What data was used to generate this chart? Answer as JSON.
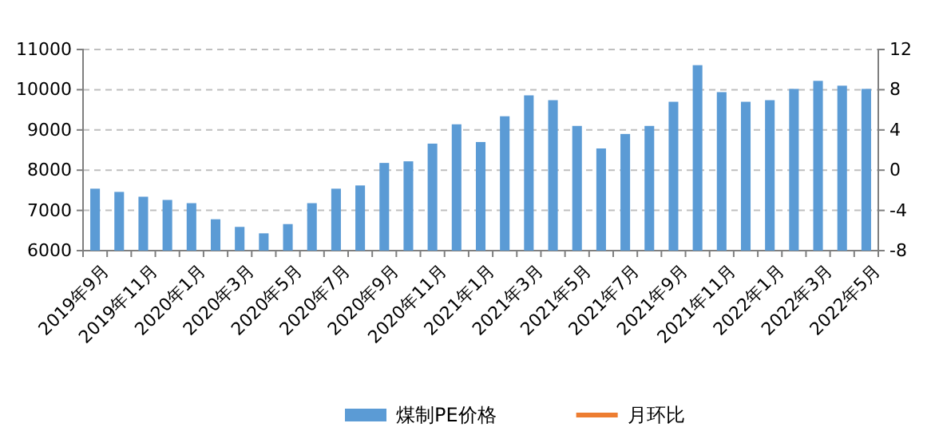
{
  "chart_data": {
    "type": "bar",
    "categories": [
      "2019年9月",
      null,
      "2019年11月",
      null,
      "2020年1月",
      null,
      "2020年3月",
      null,
      "2020年5月",
      null,
      "2020年7月",
      null,
      "2020年9月",
      null,
      "2020年11月",
      null,
      "2021年1月",
      null,
      "2021年3月",
      null,
      "2021年5月",
      null,
      "2021年7月",
      null,
      "2021年9月",
      null,
      "2021年11月",
      null,
      "2022年1月",
      null,
      "2022年3月",
      null,
      "2022年5月"
    ],
    "series": [
      {
        "name": "煤制PE价格",
        "color": "#5b9bd5",
        "values": [
          7540,
          7460,
          7340,
          7260,
          7180,
          6780,
          6590,
          6430,
          6660,
          7180,
          7540,
          7620,
          8180,
          8220,
          8660,
          9140,
          8700,
          9340,
          9860,
          9740,
          9100,
          8540,
          8900,
          9100,
          9700,
          10610,
          9940,
          9700,
          9740,
          10020,
          10220,
          10100,
          10020
        ]
      },
      {
        "name": "月环比",
        "color": "#ed7d31",
        "type": "line",
        "values": [
          null,
          null,
          null,
          null,
          null,
          null,
          null,
          null,
          null,
          null,
          null,
          null,
          null,
          null,
          null,
          null,
          null,
          null,
          null,
          null,
          null,
          null,
          null,
          null,
          null,
          null,
          null,
          null,
          null,
          null,
          null,
          null,
          null
        ]
      }
    ],
    "ylim": [
      6000,
      11000
    ],
    "yticks": [
      6000,
      7000,
      8000,
      9000,
      10000,
      11000
    ],
    "y2lim": [
      -8,
      12
    ],
    "y2ticks": [
      -8,
      -4,
      0,
      4,
      8,
      12
    ],
    "grid": "y",
    "legend": "bottom"
  }
}
